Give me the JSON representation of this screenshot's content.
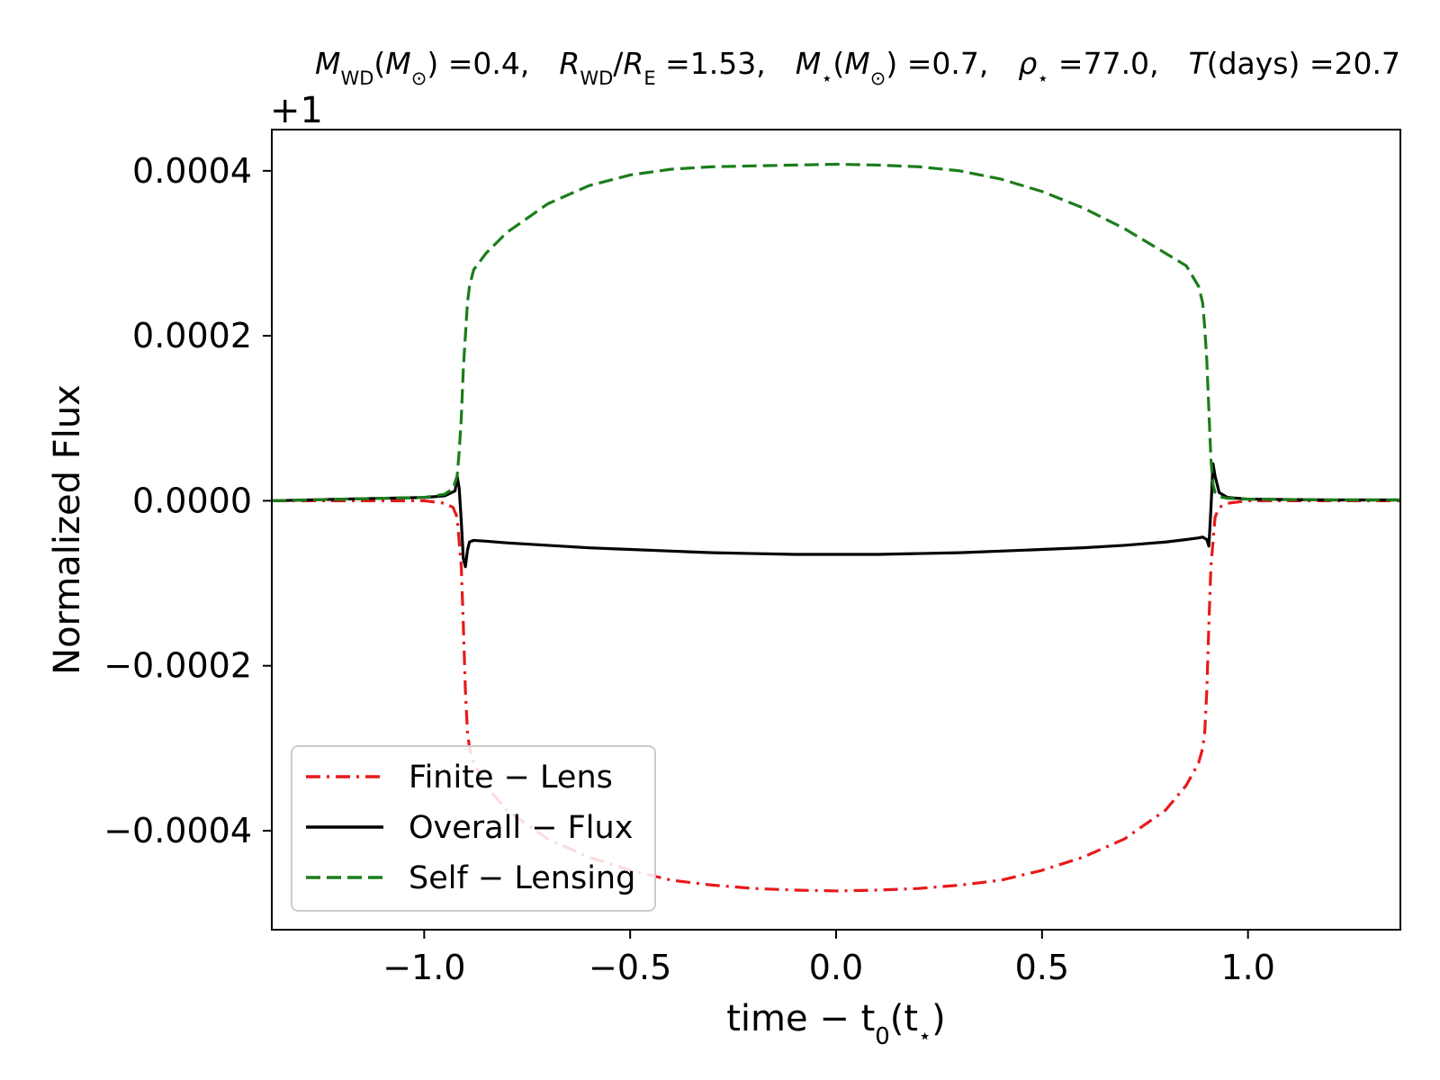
{
  "chart_data": {
    "type": "line",
    "title": {
      "terms": [
        {
          "sym": "M",
          "sub": "WD",
          "unit": "M",
          "unit_sub": "⊙",
          "value": "0.4"
        },
        {
          "sym": "R",
          "sub": "WD",
          "over": "R",
          "over_sub": "E",
          "value": "1.53"
        },
        {
          "sym": "M",
          "sub": "⋆",
          "unit": "M",
          "unit_sub": "⊙",
          "value": "0.7"
        },
        {
          "sym": "ρ",
          "sub": "⋆",
          "value": "77.0"
        },
        {
          "sym": "T",
          "unit_text": "days",
          "value": "20.7"
        }
      ]
    },
    "offset_text": "+1",
    "xlabel": {
      "main": "time − t",
      "sub": "0",
      "tail": "(t",
      "tail_sub": "⋆",
      "end": ")"
    },
    "ylabel": "Normalized Flux",
    "xlim": [
      -1.37,
      1.37
    ],
    "ylim": [
      -0.00052,
      0.00045
    ],
    "x_ticks": [
      -1.0,
      -0.5,
      0.0,
      0.5,
      1.0
    ],
    "x_tick_labels": [
      "−1.0",
      "−0.5",
      "0.0",
      "0.5",
      "1.0"
    ],
    "y_ticks": [
      -0.0004,
      -0.0002,
      0.0,
      0.0002,
      0.0004
    ],
    "y_tick_labels": [
      "−0.0004",
      "−0.0002",
      "0.0000",
      "0.0002",
      "0.0004"
    ],
    "grid": false,
    "legend_position": "lower-left",
    "series": [
      {
        "name": "Finite − Lens",
        "color": "#e8191b",
        "style": "dashdot",
        "x": [
          -1.37,
          -1.0,
          -0.95,
          -0.93,
          -0.92,
          -0.915,
          -0.91,
          -0.905,
          -0.9,
          -0.895,
          -0.89,
          -0.88,
          -0.85,
          -0.8,
          -0.7,
          -0.6,
          -0.5,
          -0.4,
          -0.3,
          -0.2,
          -0.1,
          0.0,
          0.1,
          0.2,
          0.3,
          0.4,
          0.5,
          0.6,
          0.7,
          0.8,
          0.85,
          0.88,
          0.89,
          0.895,
          0.9,
          0.905,
          0.91,
          0.915,
          0.92,
          0.93,
          0.95,
          1.0,
          1.37
        ],
        "y": [
          0.0,
          0.0,
          -3e-06,
          -8e-06,
          -2e-05,
          -5e-05,
          -8e-05,
          -0.00015,
          -0.00023,
          -0.00028,
          -0.0003,
          -0.000318,
          -0.000345,
          -0.000375,
          -0.00041,
          -0.000432,
          -0.000448,
          -0.00046,
          -0.000466,
          -0.00047,
          -0.000472,
          -0.000473,
          -0.000472,
          -0.00047,
          -0.000466,
          -0.00046,
          -0.000448,
          -0.000432,
          -0.00041,
          -0.000375,
          -0.000345,
          -0.000318,
          -0.0003,
          -0.00028,
          -0.00023,
          -0.00015,
          -8e-05,
          -5e-05,
          -2e-05,
          -8e-06,
          -3e-06,
          0.0,
          0.0
        ]
      },
      {
        "name": "Overall − Flux",
        "color": "#000000",
        "style": "solid",
        "x": [
          -1.37,
          -1.2,
          -1.0,
          -0.95,
          -0.925,
          -0.92,
          -0.915,
          -0.91,
          -0.905,
          -0.9,
          -0.895,
          -0.89,
          -0.88,
          -0.85,
          -0.8,
          -0.7,
          -0.6,
          -0.5,
          -0.4,
          -0.3,
          -0.2,
          -0.1,
          0.0,
          0.1,
          0.2,
          0.3,
          0.4,
          0.5,
          0.6,
          0.7,
          0.75,
          0.8,
          0.85,
          0.88,
          0.89,
          0.9,
          0.905,
          0.91,
          0.915,
          0.92,
          0.93,
          0.95,
          1.0,
          1.2,
          1.37
        ],
        "y": [
          0.0,
          2e-06,
          4e-06,
          6e-06,
          1.2e-05,
          3e-05,
          1.5e-05,
          -2.5e-05,
          -7e-05,
          -8e-05,
          -6e-05,
          -5e-05,
          -4.8e-05,
          -4.9e-05,
          -5.1e-05,
          -5.4e-05,
          -5.7e-05,
          -5.9e-05,
          -6.1e-05,
          -6.3e-05,
          -6.4e-05,
          -6.5e-05,
          -6.5e-05,
          -6.5e-05,
          -6.4e-05,
          -6.3e-05,
          -6.1e-05,
          -5.9e-05,
          -5.7e-05,
          -5.4e-05,
          -5.2e-05,
          -5e-05,
          -4.7e-05,
          -4.5e-05,
          -4.4e-05,
          -4.7e-05,
          -5.5e-05,
          -1e-05,
          4.5e-05,
          3e-05,
          1e-05,
          4e-06,
          2e-06,
          1e-06,
          1e-06
        ]
      },
      {
        "name": "Self − Lensing",
        "color": "#1b7d1b",
        "style": "dashed",
        "x": [
          -1.37,
          -1.2,
          -1.0,
          -0.95,
          -0.93,
          -0.92,
          -0.915,
          -0.91,
          -0.905,
          -0.9,
          -0.895,
          -0.89,
          -0.88,
          -0.85,
          -0.8,
          -0.7,
          -0.6,
          -0.5,
          -0.4,
          -0.3,
          -0.2,
          -0.1,
          0.0,
          0.1,
          0.2,
          0.3,
          0.4,
          0.5,
          0.6,
          0.7,
          0.8,
          0.85,
          0.88,
          0.89,
          0.895,
          0.9,
          0.905,
          0.91,
          0.915,
          0.92,
          0.93,
          0.95,
          1.0,
          1.2,
          1.37
        ],
        "y": [
          0.0,
          2e-06,
          4e-06,
          8e-06,
          1.5e-05,
          3e-05,
          6e-05,
          0.0001,
          0.00016,
          0.0002,
          0.00024,
          0.00026,
          0.00028,
          0.0003,
          0.000325,
          0.00036,
          0.000382,
          0.000395,
          0.000402,
          0.000405,
          0.000406,
          0.000407,
          0.000408,
          0.000407,
          0.000405,
          0.0004,
          0.00039,
          0.000375,
          0.000355,
          0.00033,
          0.0003,
          0.000285,
          0.00026,
          0.00024,
          0.00021,
          0.00017,
          0.00011,
          5e-05,
          2e-05,
          1e-05,
          5e-06,
          3e-06,
          2e-06,
          1e-06,
          1e-06
        ]
      }
    ]
  }
}
